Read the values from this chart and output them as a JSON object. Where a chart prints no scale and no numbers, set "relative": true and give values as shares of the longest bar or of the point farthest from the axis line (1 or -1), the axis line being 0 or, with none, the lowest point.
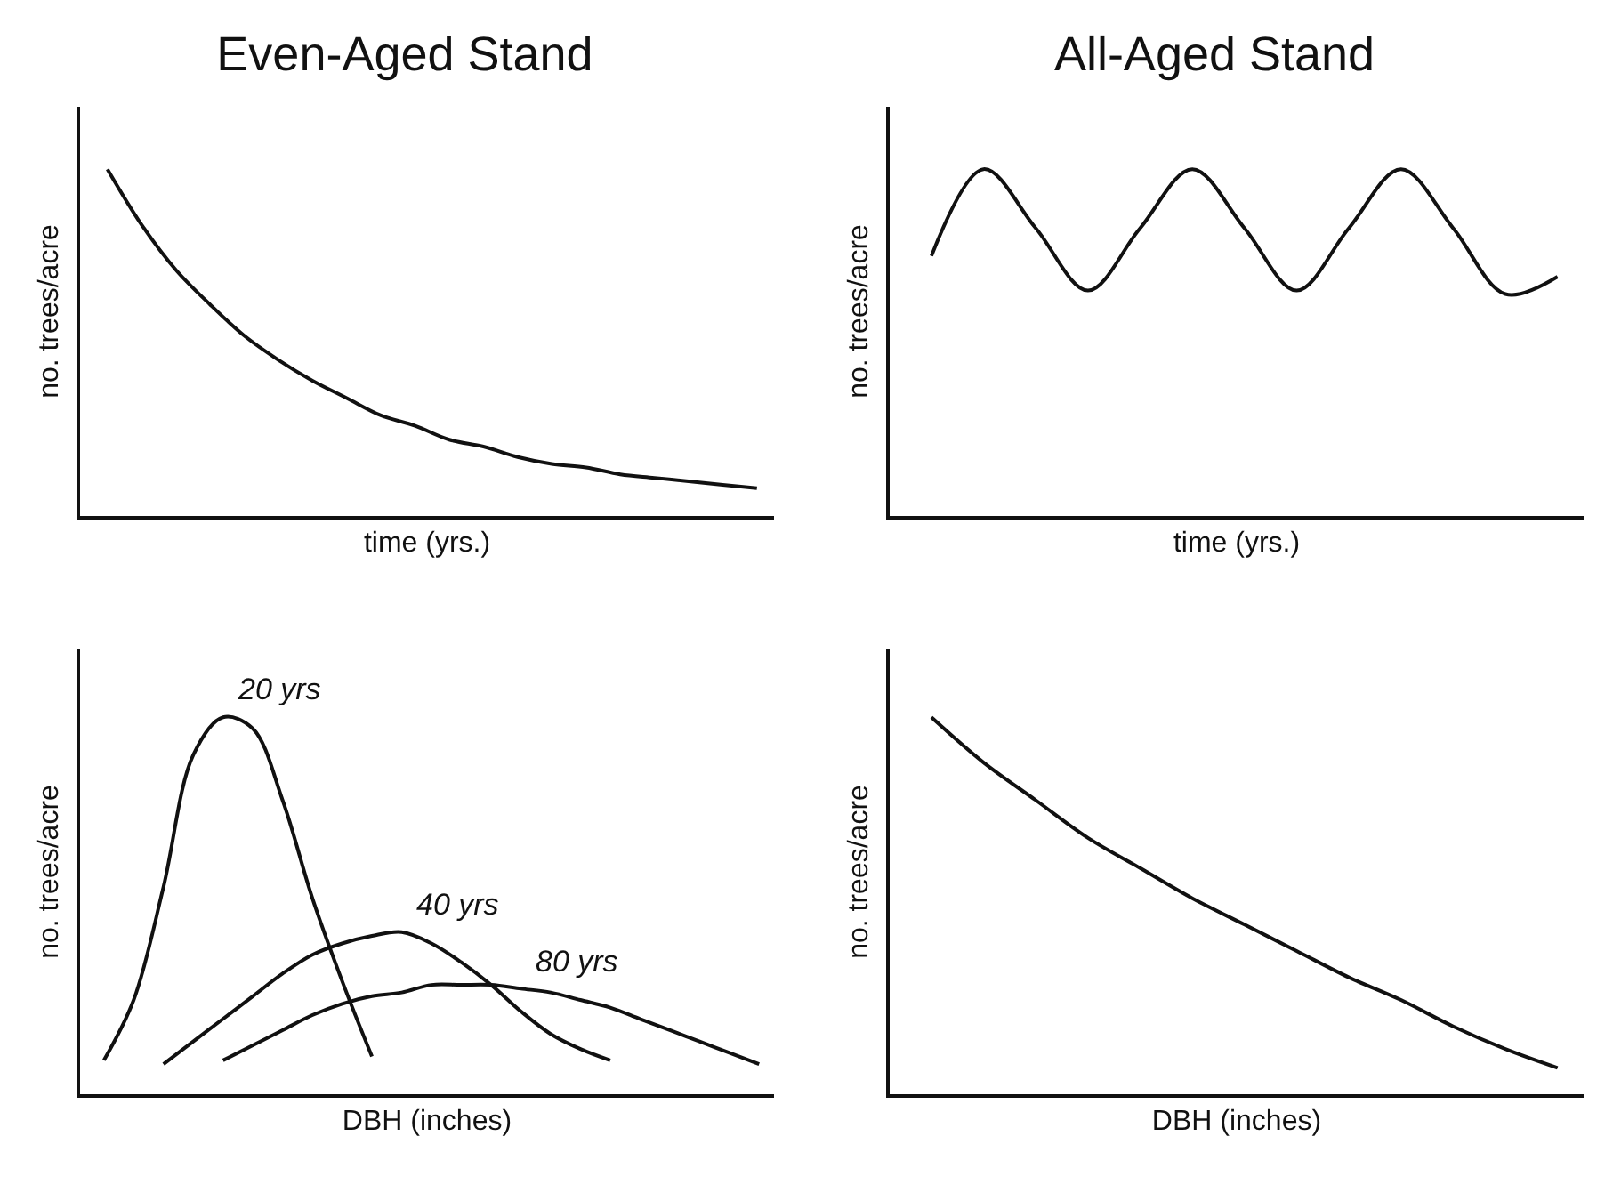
{
  "chart_data": [
    {
      "type": "line",
      "title": "Even-Aged Stand",
      "xlabel": "time (yrs.)",
      "ylabel": "no. trees/acre",
      "relative": true,
      "tick_labels": false,
      "categories": [
        null,
        null,
        null,
        null,
        null,
        null,
        null,
        null,
        null,
        null,
        null,
        null,
        null,
        null,
        null,
        null,
        null,
        null,
        null,
        null
      ],
      "series": [
        {
          "color": "#111111",
          "values": [
            1.0,
            0.84,
            0.71,
            0.61,
            0.52,
            0.45,
            0.39,
            0.34,
            0.29,
            0.26,
            0.22,
            0.2,
            0.17,
            0.15,
            0.14,
            0.12,
            0.11,
            0.1,
            0.09,
            0.08
          ]
        }
      ]
    },
    {
      "type": "line",
      "title": "All-Aged Stand",
      "xlabel": "time (yrs.)",
      "ylabel": "no. trees/acre",
      "relative": true,
      "tick_labels": false,
      "categories": [
        null,
        null,
        null,
        null,
        null,
        null,
        null,
        null,
        null,
        null,
        null,
        null,
        null
      ],
      "series": [
        {
          "color": "#111111",
          "values": [
            0.75,
            1.0,
            0.83,
            0.65,
            0.83,
            1.0,
            0.83,
            0.65,
            0.83,
            1.0,
            0.83,
            0.64,
            0.69
          ]
        }
      ]
    },
    {
      "type": "line",
      "xlabel": "DBH (inches)",
      "ylabel": "no. trees/acre",
      "relative": true,
      "tick_labels": false,
      "categories": [
        null,
        null,
        null,
        null,
        null,
        null,
        null,
        null,
        null,
        null,
        null,
        null,
        null,
        null,
        null,
        null,
        null,
        null,
        null,
        null,
        null,
        null,
        null
      ],
      "series": [
        {
          "name": "20 yrs",
          "color": "#111111",
          "values": [
            0.09,
            0.25,
            0.55,
            0.9,
            1.0,
            0.97,
            0.78,
            0.52,
            0.3,
            0.1,
            null,
            null,
            null,
            null,
            null,
            null,
            null,
            null,
            null,
            null,
            null,
            null,
            null
          ]
        },
        {
          "name": "40 yrs",
          "color": "#111111",
          "values": [
            null,
            null,
            0.08,
            0.14,
            0.2,
            0.26,
            0.32,
            0.37,
            0.4,
            0.42,
            0.43,
            0.4,
            0.35,
            0.29,
            0.22,
            0.16,
            0.12,
            0.09,
            null,
            null,
            null,
            null,
            null
          ]
        },
        {
          "name": "80 yrs",
          "color": "#111111",
          "values": [
            null,
            null,
            null,
            null,
            0.09,
            0.13,
            0.17,
            0.21,
            0.24,
            0.26,
            0.27,
            0.29,
            0.29,
            0.29,
            0.28,
            0.27,
            0.25,
            0.23,
            0.2,
            0.17,
            0.14,
            0.11,
            0.08
          ]
        }
      ]
    },
    {
      "type": "line",
      "xlabel": "DBH (inches)",
      "ylabel": "no. trees/acre",
      "relative": true,
      "tick_labels": false,
      "categories": [
        null,
        null,
        null,
        null,
        null,
        null,
        null,
        null,
        null,
        null,
        null,
        null,
        null
      ],
      "series": [
        {
          "color": "#111111",
          "values": [
            1.0,
            0.88,
            0.78,
            0.68,
            0.6,
            0.52,
            0.45,
            0.38,
            0.31,
            0.25,
            0.18,
            0.12,
            0.07
          ]
        }
      ]
    }
  ]
}
